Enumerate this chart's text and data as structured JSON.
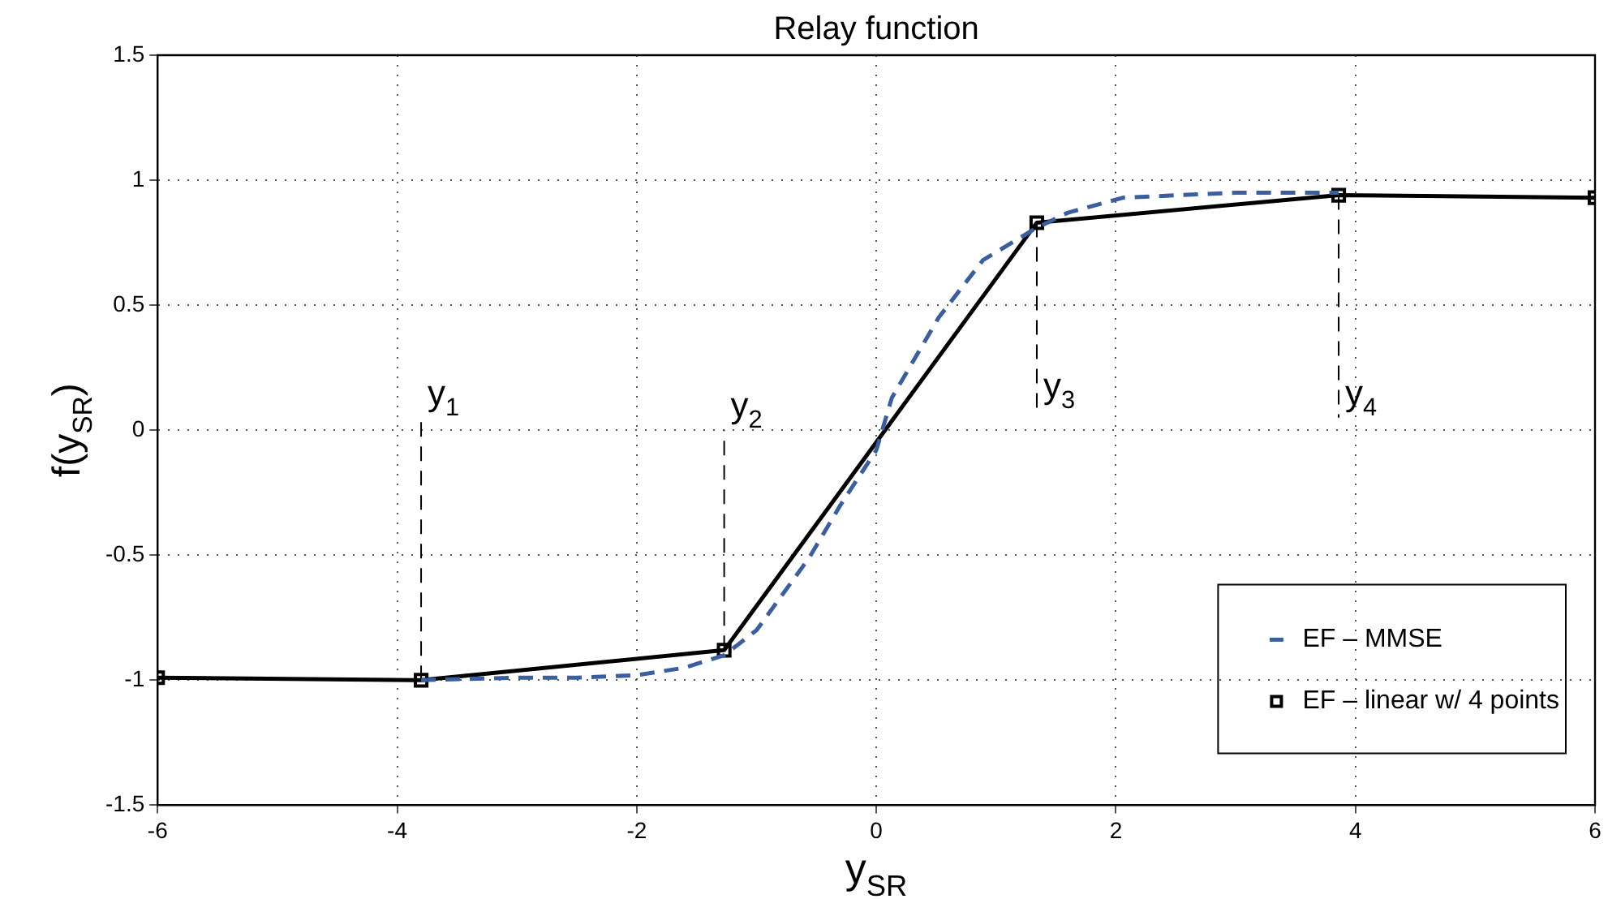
{
  "chart_data": {
    "type": "line",
    "title": "Relay function",
    "xlabel": "y$_{SR}$",
    "ylabel": "f(y$_{SR}$)",
    "xlim": [
      -6,
      6
    ],
    "xticks": [
      -6,
      -4,
      -2,
      0,
      2,
      4,
      6
    ],
    "ylim": [
      -1.5,
      1.5
    ],
    "yticks": [
      -1.5,
      -1,
      -0.5,
      0,
      0.5,
      1,
      1.5
    ],
    "grid": true,
    "legend": "bottom right",
    "series": [
      {
        "name": "EF – MMSE",
        "color": "#3a5fa0",
        "line_style": "dashed",
        "marker": "none",
        "x": [
          -3.8,
          -3,
          -2.5,
          -2,
          -1.6,
          -1.27,
          -1,
          -0.56,
          -0.3,
          0,
          0.13,
          0.52,
          0.89,
          1.34,
          1.6,
          2.06,
          3,
          3.86
        ],
        "values": [
          -1,
          -0.99,
          -0.99,
          -0.98,
          -0.95,
          -0.9,
          -0.8,
          -0.51,
          -0.3,
          -0.08,
          0.13,
          0.45,
          0.68,
          0.81,
          0.87,
          0.93,
          0.95,
          0.95
        ]
      },
      {
        "name": "EF – linear w/ 4 points",
        "color": "#000000",
        "line_style": "solid",
        "marker": "square",
        "x": [
          -6,
          -3.8,
          -1.27,
          1.34,
          3.86,
          6
        ],
        "values": [
          -0.99,
          -1,
          -0.88,
          0.83,
          0.94,
          0.93
        ]
      },
      {
        "color": "#000000",
        "line_style": "dashed",
        "marker": "none",
        "x": [
          -3.8,
          -3.8
        ],
        "values": [
          -1,
          0.05
        ]
      },
      {
        "color": "#000000",
        "line_style": "dashed",
        "marker": "none",
        "x": [
          -1.27,
          -1.27
        ],
        "values": [
          -0.88,
          0
        ]
      },
      {
        "color": "#000000",
        "line_style": "dashed",
        "marker": "none",
        "x": [
          1.34,
          1.34
        ],
        "values": [
          0.83,
          0.08
        ]
      },
      {
        "color": "#000000",
        "line_style": "dashed",
        "marker": "none",
        "x": [
          3.86,
          3.86
        ],
        "values": [
          0.94,
          0.05
        ]
      }
    ],
    "annotations": [
      {
        "text": "y$_{1}$",
        "x": -3.8,
        "y": 0.05
      },
      {
        "text": "y$_{2}$",
        "x": -1.27,
        "y": 0
      },
      {
        "text": "y$_{3}$",
        "x": 1.34,
        "y": 0.08
      },
      {
        "text": "y$_{4}$",
        "x": 3.86,
        "y": 0.05
      }
    ]
  }
}
